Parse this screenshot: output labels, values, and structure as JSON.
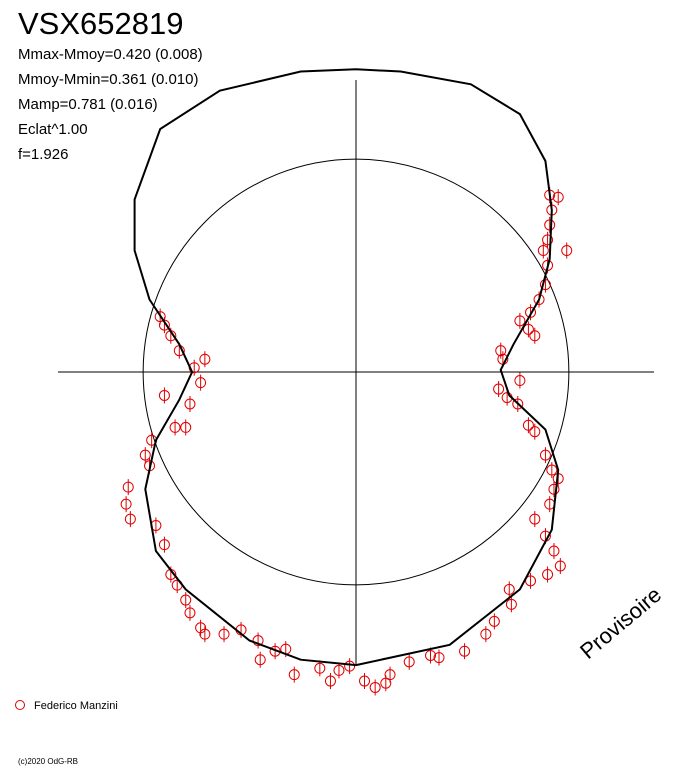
{
  "title": "VSX652819",
  "stats": [
    "Mmax-Mmoy=0.420 (0.008)",
    "Mmoy-Mmin=0.361 (0.010)",
    "Mamp=0.781 (0.016)",
    "Eclat^1.00",
    "f=1.926"
  ],
  "watermark": "Provisoire",
  "footer": "(c)2020 OdG-RB",
  "chart_data": {
    "type": "polar",
    "xlim": [
      -1.4,
      1.4
    ],
    "ylim": [
      -1.37,
      1.37
    ],
    "reference_radius": 1,
    "series": [
      {
        "name": "Federico Manzini",
        "color": "#e00000",
        "x": [
          0.91,
          0.95,
          0.92,
          0.91,
          0.9,
          0.88,
          0.99,
          0.9,
          0.89,
          0.86,
          0.82,
          0.77,
          0.81,
          0.84,
          0.68,
          0.69,
          0.77,
          0.67,
          0.71,
          0.76,
          0.81,
          0.84,
          0.89,
          0.92,
          0.95,
          0.93,
          0.91,
          0.84,
          0.89,
          0.93,
          0.96,
          0.9,
          0.82,
          0.72,
          0.73,
          0.65,
          0.61,
          0.51,
          0.39,
          0.35,
          0.25,
          0.16,
          0.14,
          0.09,
          0.04,
          -0.03,
          -0.08,
          -0.12,
          -0.17,
          -0.29,
          -0.33,
          -0.38,
          -0.45,
          -0.46,
          -0.54,
          -0.62,
          -0.71,
          -0.73,
          -0.78,
          -0.8,
          -0.84,
          -0.87,
          -0.9,
          -0.94,
          -1.07,
          -1.08,
          -1.06,
          -0.97,
          -0.99,
          -0.96,
          -0.85,
          -0.8,
          -0.78,
          -0.9,
          -0.73,
          -0.76,
          -0.71,
          -0.83,
          -0.87,
          -0.92,
          -0.9
        ],
        "y": [
          0.83,
          0.82,
          0.76,
          0.69,
          0.62,
          0.57,
          0.57,
          0.5,
          0.41,
          0.34,
          0.28,
          0.24,
          0.2,
          0.17,
          0.1,
          0.06,
          -0.04,
          -0.08,
          -0.12,
          -0.15,
          -0.25,
          -0.28,
          -0.39,
          -0.46,
          -0.5,
          -0.55,
          -0.62,
          -0.69,
          -0.77,
          -0.84,
          -0.91,
          -0.95,
          -0.98,
          -1.02,
          -1.09,
          -1.17,
          -1.23,
          -1.31,
          -1.34,
          -1.33,
          -1.36,
          -1.42,
          -1.46,
          -1.48,
          -1.45,
          -1.38,
          -1.4,
          -1.45,
          -1.39,
          -1.42,
          -1.3,
          -1.31,
          -1.35,
          -1.26,
          -1.21,
          -1.23,
          -1.23,
          -1.2,
          -1.13,
          -1.07,
          -1.0,
          -0.95,
          -0.81,
          -0.72,
          -0.54,
          -0.62,
          -0.69,
          -0.44,
          -0.39,
          -0.32,
          -0.26,
          -0.26,
          -0.15,
          -0.11,
          -0.05,
          0.02,
          0.06,
          0.1,
          0.17,
          0.26,
          0.22
        ]
      },
      {
        "color": "#000000",
        "x": [
          0,
          0.44,
          0.77,
          0.92,
          0.95,
          0.89,
          0.72,
          0.68,
          0.74,
          0.86,
          0.91,
          0.92,
          0.89,
          0.77,
          0.54,
          0.21,
          0,
          -0.26,
          -0.64,
          -0.92,
          -1.04,
          -1.04,
          -0.97,
          -0.83,
          -0.77,
          -0.83,
          -0.94,
          -0.99,
          -0.94,
          -0.8,
          -0.5,
          -0.26
        ],
        "y": [
          -1.375,
          -1.28,
          -1.02,
          -0.74,
          -0.46,
          -0.27,
          -0.11,
          0.01,
          0.13,
          0.34,
          0.53,
          0.76,
          0.99,
          1.21,
          1.35,
          1.41,
          1.42,
          1.41,
          1.32,
          1.14,
          0.81,
          0.57,
          0.34,
          0.13,
          0,
          -0.13,
          -0.32,
          -0.55,
          -0.84,
          -1.02,
          -1.26,
          -1.35
        ]
      }
    ]
  }
}
